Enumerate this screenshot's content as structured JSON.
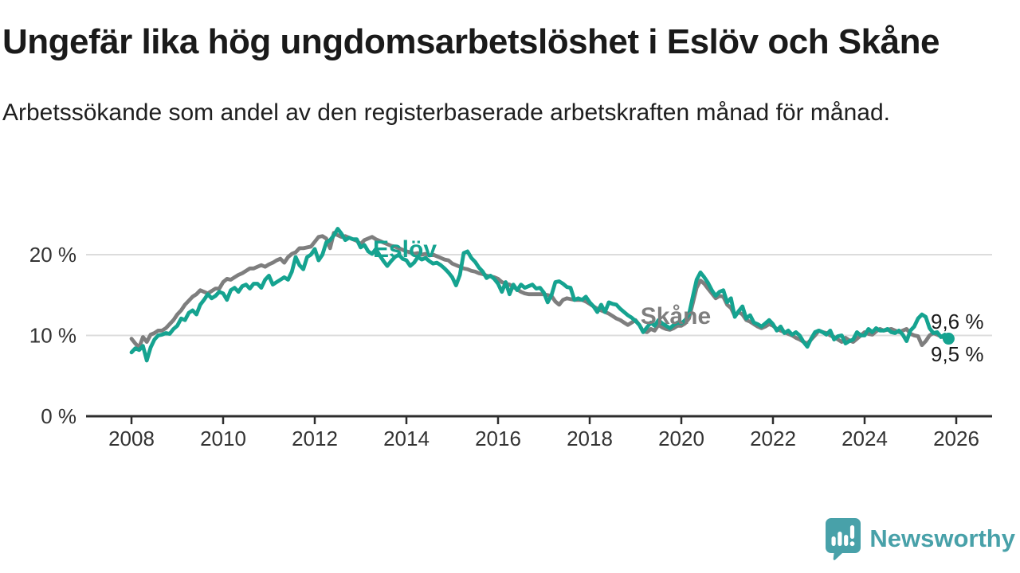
{
  "header": {
    "title": "Ungefär lika hög ungdomsarbetslöshet i Eslöv och Skåne",
    "subtitle": "Arbetssökande som andel av den registerbaserade arbetskraften månad för månad."
  },
  "chart_data": {
    "type": "line",
    "unit": "%",
    "frequency": "monthly",
    "x_start": {
      "year": 2008,
      "month": 1
    },
    "x_end": {
      "year": 2025,
      "month": 11
    },
    "x_ticks": [
      "2008",
      "2010",
      "2012",
      "2014",
      "2016",
      "2018",
      "2020",
      "2022",
      "2024",
      "2026"
    ],
    "y_ticks": [
      {
        "value": 0,
        "label": "0 %"
      },
      {
        "value": 10,
        "label": "10 %"
      },
      {
        "value": 20,
        "label": "20 %"
      }
    ],
    "ylim": [
      0,
      25
    ],
    "grid": "horizontal",
    "colors": {
      "accent_teal": "#15a390",
      "neutral_gray": "#7e7e7e",
      "gridline": "#dcdcdc",
      "axis": "#2d2d2d",
      "tick_text": "#333333",
      "label_text": "#1a1a1a"
    },
    "series": [
      {
        "name": "Eslöv",
        "color": "#15a390",
        "end_label": "9,6 %",
        "end_dot": true,
        "values": [
          7.9,
          8.4,
          8.2,
          8.7,
          6.9,
          8.5,
          9.5,
          10.0,
          10.1,
          10.3,
          10.2,
          10.8,
          11.2,
          12.1,
          11.9,
          12.8,
          13.1,
          12.6,
          13.8,
          14.4,
          15.1,
          14.6,
          14.9,
          15.4,
          15.2,
          14.4,
          15.6,
          15.9,
          15.4,
          16.1,
          16.3,
          15.8,
          16.4,
          16.4,
          15.9,
          16.9,
          17.4,
          16.3,
          16.6,
          16.9,
          17.2,
          16.9,
          17.9,
          19.7,
          18.7,
          18.2,
          19.7,
          20.0,
          20.7,
          19.3,
          20.0,
          21.5,
          21.8,
          22.4,
          23.2,
          22.6,
          21.8,
          22.1,
          21.9,
          21.9,
          20.9,
          21.2,
          20.4,
          20.1,
          20.7,
          19.9,
          19.2,
          18.6,
          19.2,
          19.7,
          20.0,
          19.5,
          19.3,
          18.6,
          19.0,
          19.7,
          19.4,
          19.6,
          19.2,
          18.9,
          19.0,
          18.7,
          18.3,
          17.8,
          17.2,
          16.2,
          17.5,
          20.2,
          20.4,
          19.6,
          19.1,
          18.4,
          17.9,
          17.1,
          17.4,
          17.0,
          16.4,
          15.4,
          16.6,
          15.1,
          16.3,
          15.6,
          16.3,
          15.9,
          16.1,
          16.3,
          15.8,
          15.9,
          15.3,
          14.1,
          15.0,
          16.6,
          16.7,
          16.4,
          16.0,
          15.9,
          14.4,
          14.6,
          14.4,
          14.8,
          14.1,
          13.6,
          12.9,
          13.8,
          12.9,
          14.1,
          13.9,
          13.8,
          13.3,
          12.9,
          12.5,
          12.2,
          11.8,
          11.3,
          10.4,
          11.0,
          11.6,
          11.2,
          11.9,
          11.5,
          11.2,
          10.9,
          11.3,
          11.6,
          11.5,
          11.9,
          12.6,
          14.8,
          16.9,
          17.8,
          17.2,
          16.5,
          15.6,
          14.9,
          15.4,
          15.6,
          14.1,
          14.6,
          12.3,
          13.0,
          13.6,
          12.1,
          12.5,
          11.6,
          11.4,
          11.1,
          11.5,
          11.9,
          11.4,
          10.6,
          11.1,
          10.3,
          10.6,
          10.1,
          10.4,
          10.0,
          9.2,
          8.6,
          9.6,
          10.4,
          10.6,
          10.4,
          10.1,
          10.6,
          9.5,
          9.9,
          10.0,
          9.0,
          9.3,
          9.5,
          10.4,
          10.0,
          10.0,
          10.8,
          10.4,
          10.9,
          10.6,
          10.6,
          10.8,
          10.4,
          10.3,
          10.6,
          10.1,
          9.3,
          10.6,
          11.1,
          12.1,
          12.6,
          12.3,
          10.9,
          10.3,
          10.4,
          9.8,
          10.1,
          9.6
        ]
      },
      {
        "name": "Skåne",
        "color": "#7e7e7e",
        "end_label": "9,5 %",
        "end_dot": false,
        "values": [
          9.6,
          9.0,
          8.5,
          9.8,
          9.2,
          10.1,
          10.3,
          10.6,
          10.6,
          10.9,
          11.4,
          11.9,
          12.6,
          13.1,
          13.8,
          14.3,
          14.8,
          15.1,
          15.6,
          15.4,
          15.2,
          15.5,
          15.8,
          15.8,
          16.6,
          17.0,
          16.9,
          17.2,
          17.5,
          17.7,
          18.0,
          18.3,
          18.3,
          18.5,
          18.7,
          18.5,
          18.8,
          19.0,
          19.3,
          19.5,
          19.0,
          19.7,
          20.1,
          20.3,
          20.8,
          20.8,
          20.9,
          21.0,
          21.6,
          22.2,
          22.3,
          22.0,
          20.8,
          22.7,
          22.4,
          22.2,
          22.3,
          22.1,
          21.9,
          21.7,
          21.3,
          21.8,
          22.0,
          22.2,
          21.9,
          21.7,
          21.5,
          21.3,
          21.1,
          21.0,
          20.8,
          20.6,
          20.4,
          20.3,
          20.1,
          20.2,
          20.0,
          20.1,
          19.9,
          20.0,
          19.8,
          19.6,
          19.4,
          19.3,
          18.9,
          18.7,
          18.5,
          18.3,
          18.2,
          18.0,
          17.9,
          17.7,
          17.6,
          17.4,
          17.3,
          17.2,
          17.0,
          16.6,
          16.4,
          16.3,
          16.0,
          15.7,
          15.4,
          15.2,
          15.1,
          15.1,
          15.1,
          15.1,
          15.1,
          15.0,
          14.9,
          14.2,
          13.8,
          14.4,
          14.6,
          14.5,
          14.4,
          14.4,
          14.4,
          14.2,
          13.9,
          13.6,
          13.3,
          13.1,
          12.9,
          12.7,
          12.4,
          12.1,
          11.9,
          11.6,
          11.3,
          11.6,
          11.9,
          11.3,
          10.5,
          10.4,
          10.8,
          10.6,
          11.3,
          11.0,
          10.8,
          10.7,
          10.9,
          11.2,
          11.2,
          11.5,
          12.1,
          14.0,
          15.9,
          16.8,
          16.4,
          15.8,
          15.2,
          14.6,
          14.9,
          14.8,
          13.8,
          13.4,
          12.4,
          12.9,
          12.6,
          11.9,
          11.7,
          11.4,
          11.1,
          10.9,
          11.1,
          11.4,
          11.2,
          10.8,
          10.6,
          10.4,
          10.2,
          10.0,
          9.7,
          9.5,
          9.2,
          9.0,
          9.5,
          10.0,
          10.6,
          10.4,
          10.3,
          10.0,
          9.8,
          9.5,
          9.2,
          9.7,
          9.4,
          9.2,
          9.6,
          10.0,
          10.4,
          10.2,
          10.1,
          10.5,
          10.8,
          10.6,
          10.7,
          10.8,
          10.6,
          10.4,
          10.6,
          10.8,
          10.2,
          10.0,
          9.9,
          8.8,
          9.3,
          10.0,
          10.3,
          10.1,
          9.9,
          9.7,
          9.5
        ]
      }
    ]
  },
  "footer": {
    "brand": "Newsworthy",
    "brand_color": "#48a1a9"
  }
}
